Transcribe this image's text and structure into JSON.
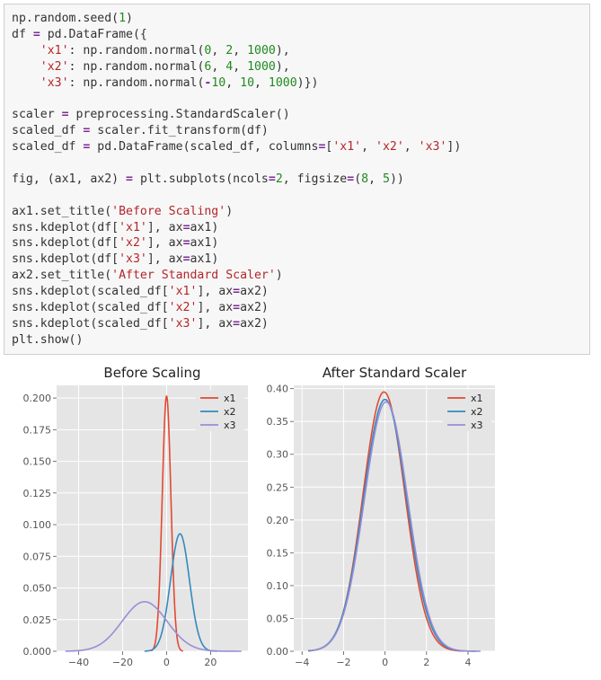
{
  "code_cell": {
    "lines": [
      [
        [
          "p",
          "np.random.seed("
        ],
        [
          "n",
          "1"
        ],
        [
          "p",
          ")"
        ]
      ],
      [
        [
          "p",
          "df "
        ],
        [
          "o",
          "="
        ],
        [
          "p",
          " pd.DataFrame({"
        ]
      ],
      [
        [
          "p",
          "    "
        ],
        [
          "s",
          "'x1'"
        ],
        [
          "p",
          ": np.random.normal("
        ],
        [
          "n",
          "0"
        ],
        [
          "p",
          ", "
        ],
        [
          "n",
          "2"
        ],
        [
          "p",
          ", "
        ],
        [
          "n",
          "1000"
        ],
        [
          "p",
          "),"
        ]
      ],
      [
        [
          "p",
          "    "
        ],
        [
          "s",
          "'x2'"
        ],
        [
          "p",
          ": np.random.normal("
        ],
        [
          "n",
          "6"
        ],
        [
          "p",
          ", "
        ],
        [
          "n",
          "4"
        ],
        [
          "p",
          ", "
        ],
        [
          "n",
          "1000"
        ],
        [
          "p",
          "),"
        ]
      ],
      [
        [
          "p",
          "    "
        ],
        [
          "s",
          "'x3'"
        ],
        [
          "p",
          ": np.random.normal("
        ],
        [
          "o",
          "-"
        ],
        [
          "n",
          "10"
        ],
        [
          "p",
          ", "
        ],
        [
          "n",
          "10"
        ],
        [
          "p",
          ", "
        ],
        [
          "n",
          "1000"
        ],
        [
          "p",
          ")})"
        ]
      ],
      [
        [
          "p",
          ""
        ]
      ],
      [
        [
          "p",
          "scaler "
        ],
        [
          "o",
          "="
        ],
        [
          "p",
          " preprocessing.StandardScaler()"
        ]
      ],
      [
        [
          "p",
          "scaled_df "
        ],
        [
          "o",
          "="
        ],
        [
          "p",
          " scaler.fit_transform(df)"
        ]
      ],
      [
        [
          "p",
          "scaled_df "
        ],
        [
          "o",
          "="
        ],
        [
          "p",
          " pd.DataFrame(scaled_df, columns"
        ],
        [
          "o",
          "="
        ],
        [
          "p",
          "["
        ],
        [
          "s",
          "'x1'"
        ],
        [
          "p",
          ", "
        ],
        [
          "s",
          "'x2'"
        ],
        [
          "p",
          ", "
        ],
        [
          "s",
          "'x3'"
        ],
        [
          "p",
          "])"
        ]
      ],
      [
        [
          "p",
          ""
        ]
      ],
      [
        [
          "p",
          "fig, (ax1, ax2) "
        ],
        [
          "o",
          "="
        ],
        [
          "p",
          " plt.subplots(ncols"
        ],
        [
          "o",
          "="
        ],
        [
          "n",
          "2"
        ],
        [
          "p",
          ", figsize"
        ],
        [
          "o",
          "="
        ],
        [
          "p",
          "("
        ],
        [
          "n",
          "8"
        ],
        [
          "p",
          ", "
        ],
        [
          "n",
          "5"
        ],
        [
          "p",
          "))"
        ]
      ],
      [
        [
          "p",
          ""
        ]
      ],
      [
        [
          "p",
          "ax1.set_title("
        ],
        [
          "s",
          "'Before Scaling'"
        ],
        [
          "p",
          ")"
        ]
      ],
      [
        [
          "p",
          "sns.kdeplot(df["
        ],
        [
          "s",
          "'x1'"
        ],
        [
          "p",
          "], ax"
        ],
        [
          "o",
          "="
        ],
        [
          "p",
          "ax1)"
        ]
      ],
      [
        [
          "p",
          "sns.kdeplot(df["
        ],
        [
          "s",
          "'x2'"
        ],
        [
          "p",
          "], ax"
        ],
        [
          "o",
          "="
        ],
        [
          "p",
          "ax1)"
        ]
      ],
      [
        [
          "p",
          "sns.kdeplot(df["
        ],
        [
          "s",
          "'x3'"
        ],
        [
          "p",
          "], ax"
        ],
        [
          "o",
          "="
        ],
        [
          "p",
          "ax1)"
        ]
      ],
      [
        [
          "p",
          "ax2.set_title("
        ],
        [
          "s",
          "'After Standard Scaler'"
        ],
        [
          "p",
          ")"
        ]
      ],
      [
        [
          "p",
          "sns.kdeplot(scaled_df["
        ],
        [
          "s",
          "'x1'"
        ],
        [
          "p",
          "], ax"
        ],
        [
          "o",
          "="
        ],
        [
          "p",
          "ax2)"
        ]
      ],
      [
        [
          "p",
          "sns.kdeplot(scaled_df["
        ],
        [
          "s",
          "'x2'"
        ],
        [
          "p",
          "], ax"
        ],
        [
          "o",
          "="
        ],
        [
          "p",
          "ax2)"
        ]
      ],
      [
        [
          "p",
          "sns.kdeplot(scaled_df["
        ],
        [
          "s",
          "'x3'"
        ],
        [
          "p",
          "], ax"
        ],
        [
          "o",
          "="
        ],
        [
          "p",
          "ax2)"
        ]
      ],
      [
        [
          "p",
          "plt.show()"
        ]
      ]
    ]
  },
  "colors": {
    "x1": "#e24a33",
    "x2": "#348abd",
    "x3": "#988ed5",
    "axes_bg": "#e5e5e5",
    "grid": "#ffffff"
  },
  "chart_data": [
    {
      "type": "line",
      "title": "Before Scaling",
      "xlabel": "",
      "ylabel": "",
      "xlim": [
        -50,
        37
      ],
      "ylim": [
        0,
        0.21
      ],
      "xticks": [
        -40,
        -20,
        0,
        20
      ],
      "yticks": [
        0.0,
        0.025,
        0.05,
        0.075,
        0.1,
        0.125,
        0.15,
        0.175,
        0.2
      ],
      "ytick_labels": [
        "0.000",
        "0.025",
        "0.050",
        "0.075",
        "0.100",
        "0.125",
        "0.150",
        "0.175",
        "0.200"
      ],
      "xtick_labels": [
        "−40",
        "−20",
        "0",
        "20"
      ],
      "grid": true,
      "legend": "top-right",
      "series": [
        {
          "name": "x1",
          "color_key": "x1",
          "kind": "normal",
          "mean": 0,
          "sd": 1.98,
          "x_range": [
            -7,
            7.5
          ]
        },
        {
          "name": "x2",
          "color_key": "x2",
          "kind": "normal",
          "mean": 6.1,
          "sd": 4.3,
          "x_range": [
            -10,
            23
          ]
        },
        {
          "name": "x3",
          "color_key": "x3",
          "kind": "normal",
          "mean": -10,
          "sd": 10.2,
          "x_range": [
            -46,
            34
          ]
        }
      ]
    },
    {
      "type": "line",
      "title": "After Standard Scaler",
      "xlabel": "",
      "ylabel": "",
      "xlim": [
        -4.4,
        5.3
      ],
      "ylim": [
        0,
        0.405
      ],
      "xticks": [
        -4,
        -2,
        0,
        2,
        4
      ],
      "yticks": [
        0.0,
        0.05,
        0.1,
        0.15,
        0.2,
        0.25,
        0.3,
        0.35,
        0.4
      ],
      "ytick_labels": [
        "0.00",
        "0.05",
        "0.10",
        "0.15",
        "0.20",
        "0.25",
        "0.30",
        "0.35",
        "0.40"
      ],
      "xtick_labels": [
        "−4",
        "−2",
        "0",
        "2",
        "4"
      ],
      "grid": true,
      "legend": "top-right",
      "series": [
        {
          "name": "x1",
          "color_key": "x1",
          "kind": "normal",
          "mean": -0.05,
          "sd": 1.01,
          "x_range": [
            -3.7,
            3.8
          ]
        },
        {
          "name": "x2",
          "color_key": "x2",
          "kind": "normal",
          "mean": 0.0,
          "sd": 1.04,
          "x_range": [
            -3.7,
            4.4
          ]
        },
        {
          "name": "x3",
          "color_key": "x3",
          "kind": "normal",
          "mean": 0.05,
          "sd": 1.05,
          "x_range": [
            -3.6,
            4.6
          ]
        }
      ]
    }
  ]
}
